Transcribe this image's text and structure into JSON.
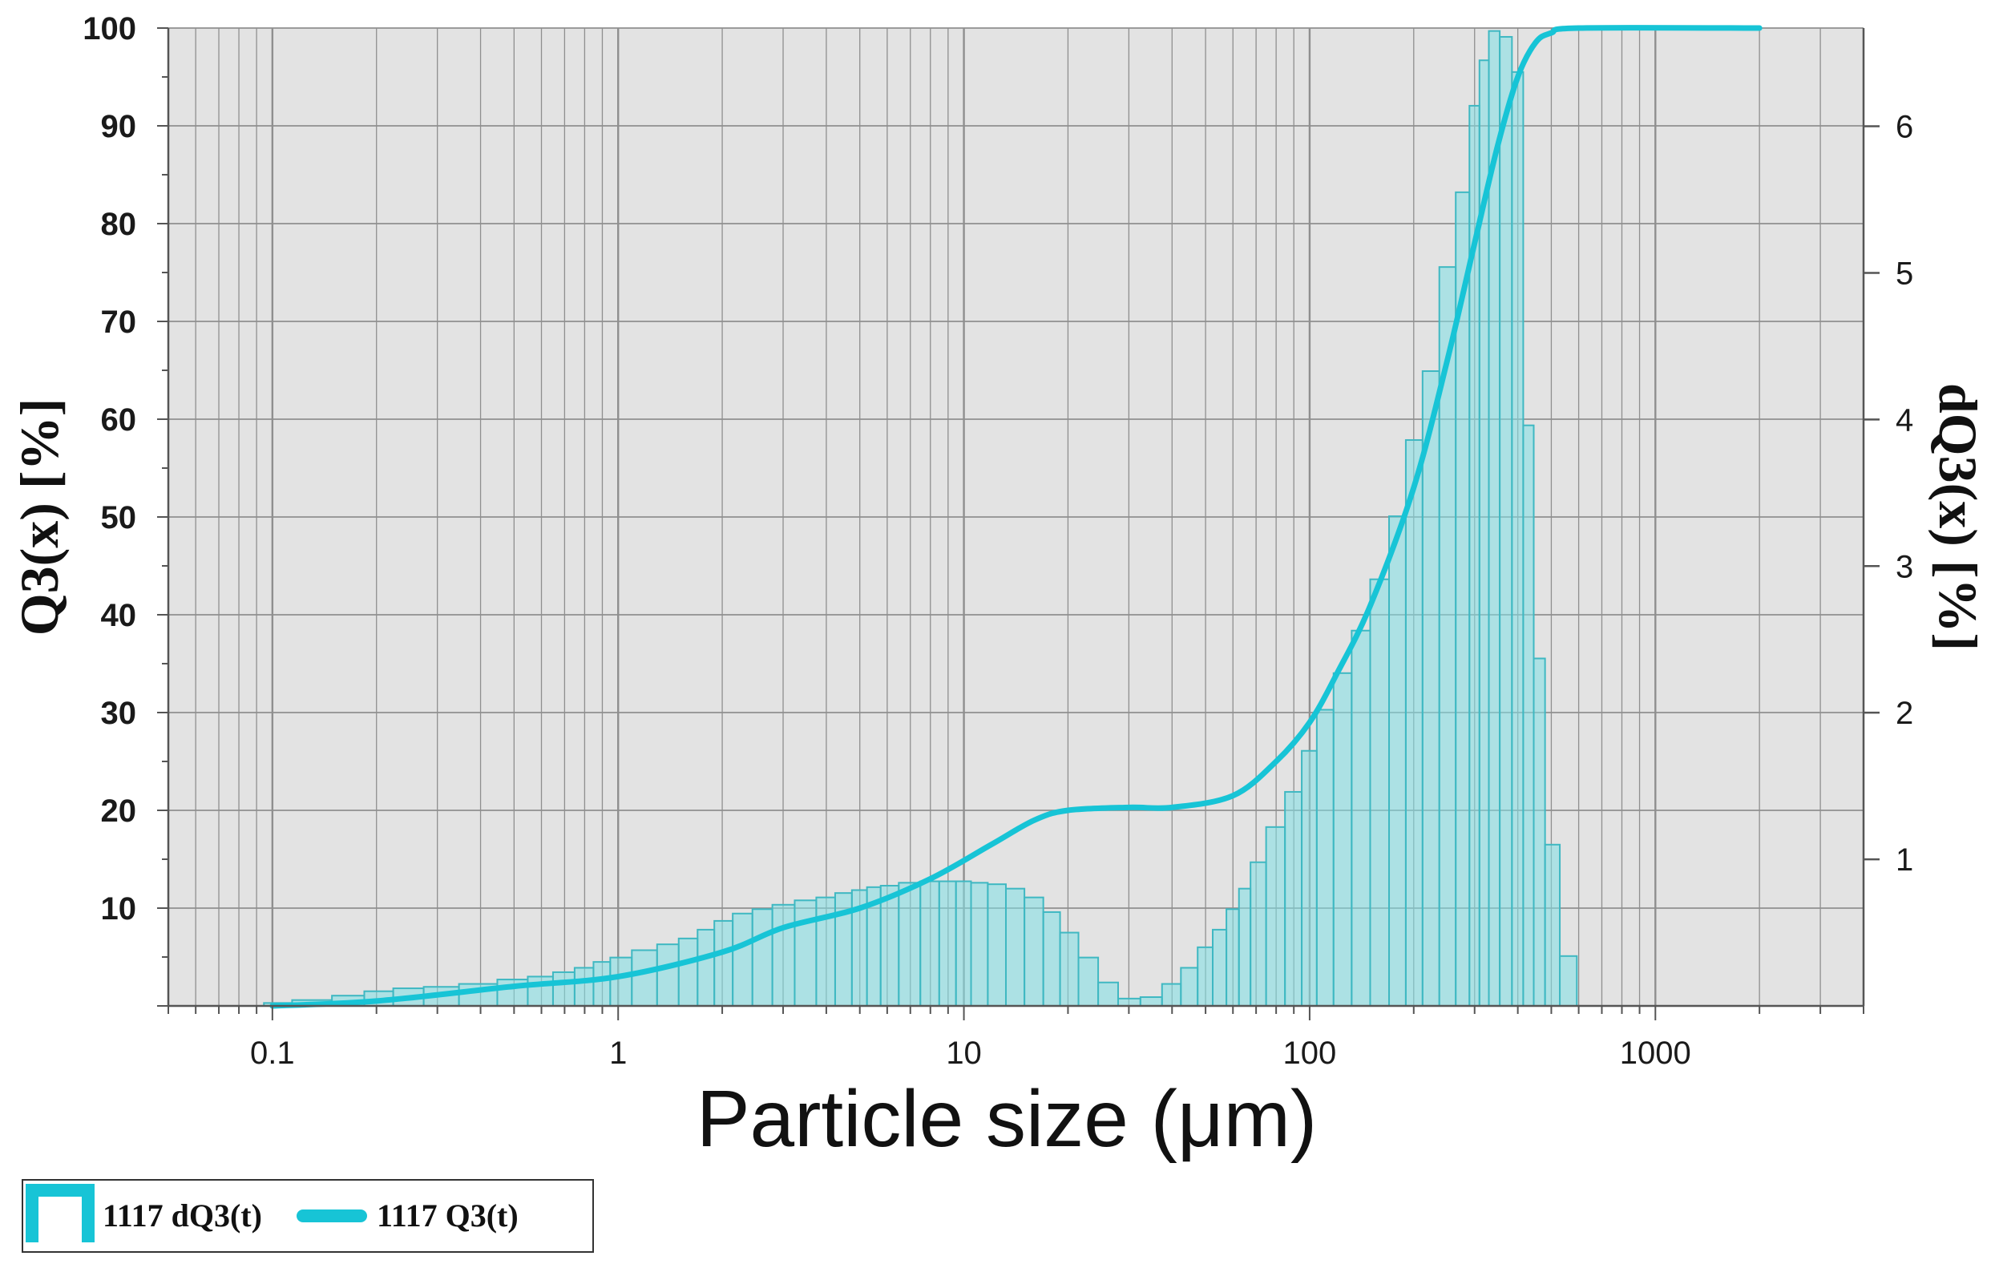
{
  "colors": {
    "plot_bg": "#e3e3e3",
    "grid": "#8f8f8f",
    "bar_fill": "#7fe0e6",
    "bar_edge": "#3fb8c2",
    "line": "#17c4d6",
    "axis": "#555555"
  },
  "chart_data": {
    "type": "bar",
    "xlabel": "Particle size (μm)",
    "ylabel_left": "Q3(x) [%]",
    "ylabel_right": "dQ3(x) [%]",
    "x_scale": "log",
    "xlim": [
      0.05,
      4000
    ],
    "ylim_left": [
      0,
      100
    ],
    "ylim_right": [
      0,
      6.67
    ],
    "x_ticks": [
      {
        "value": 0.1,
        "label": "0.1"
      },
      {
        "value": 1,
        "label": "1"
      },
      {
        "value": 10,
        "label": "10"
      },
      {
        "value": 100,
        "label": "100"
      },
      {
        "value": 1000,
        "label": "1000"
      }
    ],
    "y_ticks_left": [
      {
        "value": 10,
        "label": "10"
      },
      {
        "value": 20,
        "label": "20"
      },
      {
        "value": 30,
        "label": "30"
      },
      {
        "value": 40,
        "label": "40"
      },
      {
        "value": 50,
        "label": "50"
      },
      {
        "value": 60,
        "label": "60"
      },
      {
        "value": 70,
        "label": "70"
      },
      {
        "value": 80,
        "label": "80"
      },
      {
        "value": 90,
        "label": "90"
      },
      {
        "value": 100,
        "label": "100"
      }
    ],
    "y_ticks_right": [
      {
        "value": 1,
        "label": "1"
      },
      {
        "value": 2,
        "label": "2"
      },
      {
        "value": 3,
        "label": "3"
      },
      {
        "value": 4,
        "label": "4"
      },
      {
        "value": 5,
        "label": "5"
      },
      {
        "value": 6,
        "label": "6"
      }
    ],
    "grid": true,
    "legend_position": "bottom-left",
    "series": [
      {
        "name": "1117 dQ3(t)",
        "type": "bar",
        "axis": "right",
        "bins": [
          {
            "x": 0.1,
            "y": 0.02
          },
          {
            "x": 0.13,
            "y": 0.04
          },
          {
            "x": 0.17,
            "y": 0.07
          },
          {
            "x": 0.2,
            "y": 0.1
          },
          {
            "x": 0.25,
            "y": 0.12
          },
          {
            "x": 0.3,
            "y": 0.13
          },
          {
            "x": 0.4,
            "y": 0.15
          },
          {
            "x": 0.5,
            "y": 0.18
          },
          {
            "x": 0.6,
            "y": 0.2
          },
          {
            "x": 0.7,
            "y": 0.23
          },
          {
            "x": 0.8,
            "y": 0.26
          },
          {
            "x": 0.9,
            "y": 0.3
          },
          {
            "x": 1.0,
            "y": 0.33
          },
          {
            "x": 1.2,
            "y": 0.38
          },
          {
            "x": 1.4,
            "y": 0.42
          },
          {
            "x": 1.6,
            "y": 0.46
          },
          {
            "x": 1.8,
            "y": 0.52
          },
          {
            "x": 2.0,
            "y": 0.58
          },
          {
            "x": 2.3,
            "y": 0.63
          },
          {
            "x": 2.6,
            "y": 0.66
          },
          {
            "x": 3.0,
            "y": 0.69
          },
          {
            "x": 3.5,
            "y": 0.72
          },
          {
            "x": 4.0,
            "y": 0.74
          },
          {
            "x": 4.5,
            "y": 0.77
          },
          {
            "x": 5.0,
            "y": 0.79
          },
          {
            "x": 5.5,
            "y": 0.81
          },
          {
            "x": 6.0,
            "y": 0.82
          },
          {
            "x": 7.0,
            "y": 0.84
          },
          {
            "x": 8.0,
            "y": 0.85
          },
          {
            "x": 9.0,
            "y": 0.85
          },
          {
            "x": 10.0,
            "y": 0.85
          },
          {
            "x": 11.0,
            "y": 0.84
          },
          {
            "x": 12.5,
            "y": 0.83
          },
          {
            "x": 14.0,
            "y": 0.8
          },
          {
            "x": 16.0,
            "y": 0.74
          },
          {
            "x": 18.0,
            "y": 0.64
          },
          {
            "x": 20.0,
            "y": 0.5
          },
          {
            "x": 23.0,
            "y": 0.33
          },
          {
            "x": 26.0,
            "y": 0.16
          },
          {
            "x": 30.0,
            "y": 0.05
          },
          {
            "x": 35.0,
            "y": 0.06
          },
          {
            "x": 40.0,
            "y": 0.15
          },
          {
            "x": 45.0,
            "y": 0.26
          },
          {
            "x": 50.0,
            "y": 0.4
          },
          {
            "x": 55.0,
            "y": 0.52
          },
          {
            "x": 60.0,
            "y": 0.66
          },
          {
            "x": 65.0,
            "y": 0.8
          },
          {
            "x": 70.0,
            "y": 0.98
          },
          {
            "x": 80.0,
            "y": 1.22
          },
          {
            "x": 90.0,
            "y": 1.46
          },
          {
            "x": 100.0,
            "y": 1.74
          },
          {
            "x": 110.0,
            "y": 2.02
          },
          {
            "x": 125.0,
            "y": 2.27
          },
          {
            "x": 140.0,
            "y": 2.56
          },
          {
            "x": 160.0,
            "y": 2.91
          },
          {
            "x": 180.0,
            "y": 3.34
          },
          {
            "x": 200.0,
            "y": 3.86
          },
          {
            "x": 225.0,
            "y": 4.33
          },
          {
            "x": 250.0,
            "y": 5.04
          },
          {
            "x": 280.0,
            "y": 5.55
          },
          {
            "x": 300.0,
            "y": 6.14
          },
          {
            "x": 320.0,
            "y": 6.45
          },
          {
            "x": 340.0,
            "y": 6.65
          },
          {
            "x": 370.0,
            "y": 6.61
          },
          {
            "x": 400.0,
            "y": 6.37
          },
          {
            "x": 430.0,
            "y": 3.96
          },
          {
            "x": 460.0,
            "y": 2.37
          },
          {
            "x": 500.0,
            "y": 1.1
          },
          {
            "x": 560.0,
            "y": 0.34
          }
        ]
      },
      {
        "name": "1117 Q3(t)",
        "type": "line",
        "axis": "left",
        "points": [
          {
            "x": 0.1,
            "y": 0.0
          },
          {
            "x": 0.2,
            "y": 0.5
          },
          {
            "x": 0.5,
            "y": 2.0
          },
          {
            "x": 1.0,
            "y": 3.0
          },
          {
            "x": 2.0,
            "y": 5.5
          },
          {
            "x": 3.0,
            "y": 8.0
          },
          {
            "x": 5.0,
            "y": 10.0
          },
          {
            "x": 8.0,
            "y": 13.0
          },
          {
            "x": 12.0,
            "y": 16.5
          },
          {
            "x": 16.0,
            "y": 19.0
          },
          {
            "x": 20.0,
            "y": 20.0
          },
          {
            "x": 30.0,
            "y": 20.3
          },
          {
            "x": 40.0,
            "y": 20.3
          },
          {
            "x": 60.0,
            "y": 21.5
          },
          {
            "x": 80.0,
            "y": 25.0
          },
          {
            "x": 100.0,
            "y": 29.0
          },
          {
            "x": 120.0,
            "y": 34.0
          },
          {
            "x": 150.0,
            "y": 41.0
          },
          {
            "x": 200.0,
            "y": 53.0
          },
          {
            "x": 250.0,
            "y": 66.0
          },
          {
            "x": 300.0,
            "y": 78.0
          },
          {
            "x": 350.0,
            "y": 88.0
          },
          {
            "x": 400.0,
            "y": 95.0
          },
          {
            "x": 450.0,
            "y": 98.5
          },
          {
            "x": 500.0,
            "y": 99.5
          },
          {
            "x": 600.0,
            "y": 100.0
          },
          {
            "x": 2000.0,
            "y": 100.0
          }
        ]
      }
    ]
  }
}
